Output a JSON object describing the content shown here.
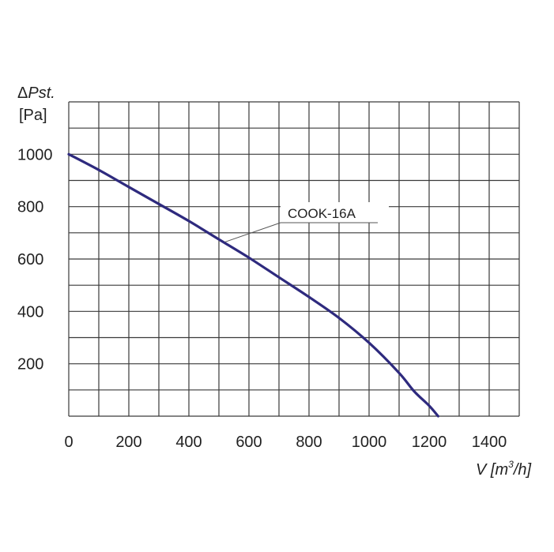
{
  "chart_data": {
    "type": "line",
    "ylabel": {
      "symbol": "Δ",
      "text": "Pst.",
      "unit": "[Pa]"
    },
    "xlabel": {
      "text": "V [m",
      "sup": "3",
      "tail": "/h]"
    },
    "xlim": [
      0,
      1500
    ],
    "ylim": [
      0,
      1200
    ],
    "x_ticks": [
      0,
      200,
      400,
      600,
      800,
      1000,
      1200,
      1400
    ],
    "y_ticks": [
      200,
      400,
      600,
      800,
      1000
    ],
    "grid": true,
    "series": [
      {
        "name": "COOK-16A",
        "color": "#2e2a7e",
        "x": [
          0,
          100,
          200,
          300,
          400,
          500,
          600,
          700,
          800,
          900,
          1000,
          1100,
          1150,
          1200,
          1230
        ],
        "y": [
          1000,
          940,
          875,
          810,
          745,
          675,
          605,
          530,
          455,
          375,
          280,
          165,
          95,
          40,
          0
        ]
      }
    ],
    "annotations": [
      {
        "text": "COOK-16A",
        "x": 520,
        "y": 665
      }
    ]
  }
}
